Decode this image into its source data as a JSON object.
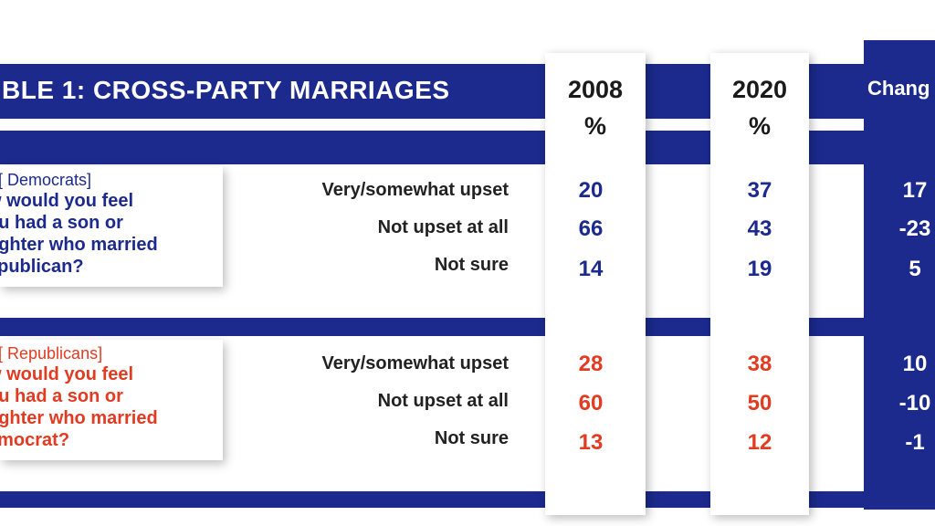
{
  "chart_data": {
    "type": "table",
    "title": "BLE 1: CROSS-PARTY MARRIAGES",
    "columns": [
      {
        "year": "2008",
        "unit": "%"
      },
      {
        "year": "2020",
        "unit": "%"
      }
    ],
    "change_label": "Chang",
    "groups": [
      {
        "party": "dem",
        "group_label": "Democrats]",
        "question_lines": [
          "w would you feel",
          "ou had a son or",
          "ughter who married",
          "epublican?"
        ],
        "rows": [
          {
            "label": "Very/somewhat upset",
            "y2008": "20",
            "y2020": "37",
            "change": "17"
          },
          {
            "label": "Not upset at all",
            "y2008": "66",
            "y2020": "43",
            "change": "-23"
          },
          {
            "label": "Not sure",
            "y2008": "14",
            "y2020": "19",
            "change": "5"
          }
        ]
      },
      {
        "party": "rep",
        "group_label": "Republicans]",
        "question_lines": [
          "w would you feel",
          "ou had a son or",
          "ughter who married",
          "emocrat?"
        ],
        "rows": [
          {
            "label": "Very/somewhat upset",
            "y2008": "28",
            "y2020": "38",
            "change": "10"
          },
          {
            "label": "Not upset at all",
            "y2008": "60",
            "y2020": "50",
            "change": "-10"
          },
          {
            "label": "Not sure",
            "y2008": "13",
            "y2020": "12",
            "change": "-1"
          }
        ]
      }
    ],
    "colors": {
      "navy": "#1b2a8c",
      "dem": "#1b2a8c",
      "rep": "#e23b22",
      "text": "#222222"
    }
  }
}
